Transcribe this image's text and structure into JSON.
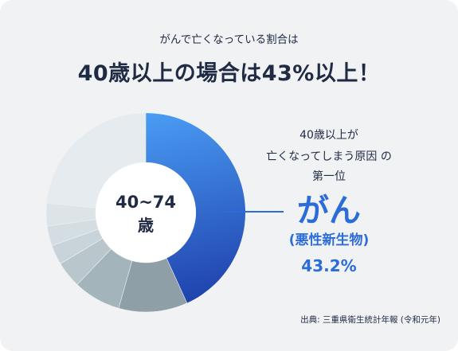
{
  "header": {
    "subtitle": "がんで亡くなっている割合は",
    "title": "40歳以上の場合は43%以上！"
  },
  "center_label": {
    "line1": "40~74",
    "line2": "歳"
  },
  "callout": {
    "line1": "40歳以上が",
    "line2": "亡くなってしまう原因 の",
    "line3": "第一位",
    "cause": "がん",
    "cause_detail": "(悪性新生物)",
    "percent": "43.2%"
  },
  "source": "出典: 三重県衛生統計年報 (令和元年)",
  "colors": {
    "text_dark": "#1f2a44",
    "accent": "#2c6cd8",
    "card_bg": "#f1f2f4",
    "highlight_gradient": [
      "#4a9cf4",
      "#1d3ea9"
    ]
  },
  "chart_data": {
    "type": "pie",
    "donut": true,
    "start": "top",
    "direction": "clockwise",
    "values": [
      43.2,
      11.2,
      7.7,
      4.3,
      3.2,
      3.2,
      3.7,
      23.5
    ],
    "colors": [
      "#2c6cd8",
      "#8e9fa8",
      "#a4b4bb",
      "#b9c7cd",
      "#c8d4d9",
      "#d3dde2",
      "#dce4e8",
      "#e5ebef"
    ]
  }
}
